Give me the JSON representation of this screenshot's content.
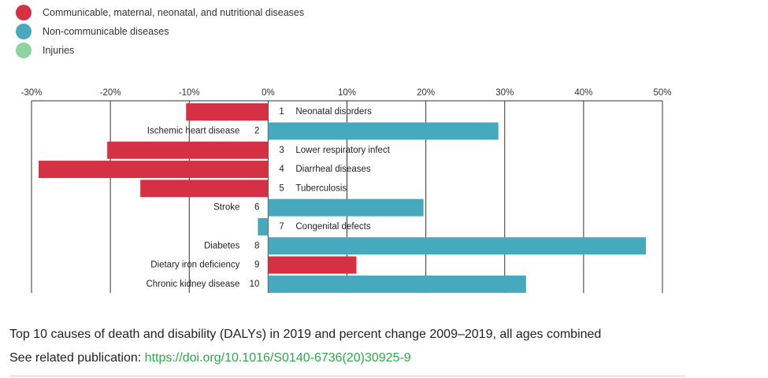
{
  "legend": [
    {
      "label": "Communicable, maternal, neonatal, and nutritional diseases",
      "color": "#d63044"
    },
    {
      "label": "Non-communicable diseases",
      "color": "#47a9bd"
    },
    {
      "label": "Injuries",
      "color": "#8fd3a1"
    }
  ],
  "chart_data": {
    "type": "bar",
    "orientation": "horizontal",
    "xlim": [
      -30,
      50
    ],
    "ticks": [
      -30,
      -20,
      -10,
      0,
      10,
      20,
      30,
      40,
      50
    ],
    "tick_labels": [
      "-30%",
      "-20%",
      "-10%",
      "0%",
      "10%",
      "20%",
      "30%",
      "40%",
      "50%"
    ],
    "grid": "vertical",
    "items": [
      {
        "rank": "1",
        "label": "Neonatal disorders",
        "value": -10.4,
        "group": "Communicable, maternal, neonatal, and nutritional diseases"
      },
      {
        "rank": "2",
        "label": "Ischemic heart disease",
        "value": 29.2,
        "group": "Non-communicable diseases"
      },
      {
        "rank": "3",
        "label": "Lower respiratory infect",
        "value": -20.4,
        "group": "Communicable, maternal, neonatal, and nutritional diseases"
      },
      {
        "rank": "4",
        "label": "Diarrheal diseases",
        "value": -29.1,
        "group": "Communicable, maternal, neonatal, and nutritional diseases"
      },
      {
        "rank": "5",
        "label": "Tuberculosis",
        "value": -16.2,
        "group": "Communicable, maternal, neonatal, and nutritional diseases"
      },
      {
        "rank": "6",
        "label": "Stroke",
        "value": 19.7,
        "group": "Non-communicable diseases"
      },
      {
        "rank": "7",
        "label": "Congenital defects",
        "value": -1.3,
        "group": "Non-communicable diseases"
      },
      {
        "rank": "8",
        "label": "Diabetes",
        "value": 47.9,
        "group": "Non-communicable diseases"
      },
      {
        "rank": "9",
        "label": "Dietary iron deficiency",
        "value": 11.2,
        "group": "Communicable, maternal, neonatal, and nutritional diseases"
      },
      {
        "rank": "10",
        "label": "Chronic kidney disease",
        "value": 32.7,
        "group": "Non-communicable diseases"
      }
    ]
  },
  "caption": "Top 10 causes of death and disability (DALYs) in 2019 and percent change 2009–2019, all ages combined",
  "related": {
    "prefix": "See related publication: ",
    "link": "https://doi.org/10.1016/S0140-6736(20)30925-9"
  }
}
